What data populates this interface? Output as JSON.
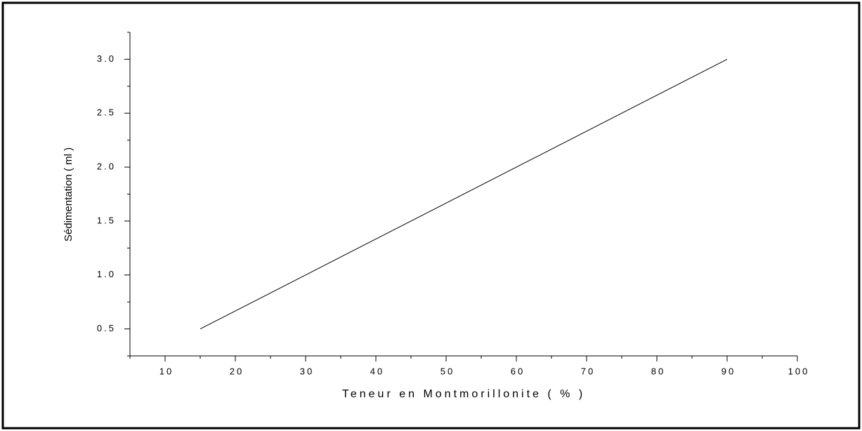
{
  "chart_data": {
    "type": "line",
    "xlabel": "Teneur en Montmorillonite ( % )",
    "ylabel": "Sédimentation ( ml )",
    "x": [
      15,
      90
    ],
    "series": [
      {
        "name": "Sédimentation",
        "color": "#000000",
        "values": [
          0.5,
          3.0
        ]
      }
    ],
    "xlim": [
      5,
      100
    ],
    "ylim": [
      0.25,
      3.25
    ],
    "xticks": [
      10,
      20,
      30,
      40,
      50,
      60,
      70,
      80,
      90,
      100
    ],
    "xminorticks": [
      5,
      15,
      25,
      35,
      45,
      55,
      65,
      75,
      85,
      95
    ],
    "yticks": [
      0.5,
      {
        "value": 1,
        "label": "1.0"
      },
      1.5,
      {
        "value": 2,
        "label": "2.0"
      },
      2.5,
      {
        "value": 3,
        "label": "3.0"
      }
    ],
    "yminorticks": [
      0.25,
      0.75,
      1.25,
      1.75,
      2.25,
      2.75,
      3.25
    ],
    "grid": false
  }
}
